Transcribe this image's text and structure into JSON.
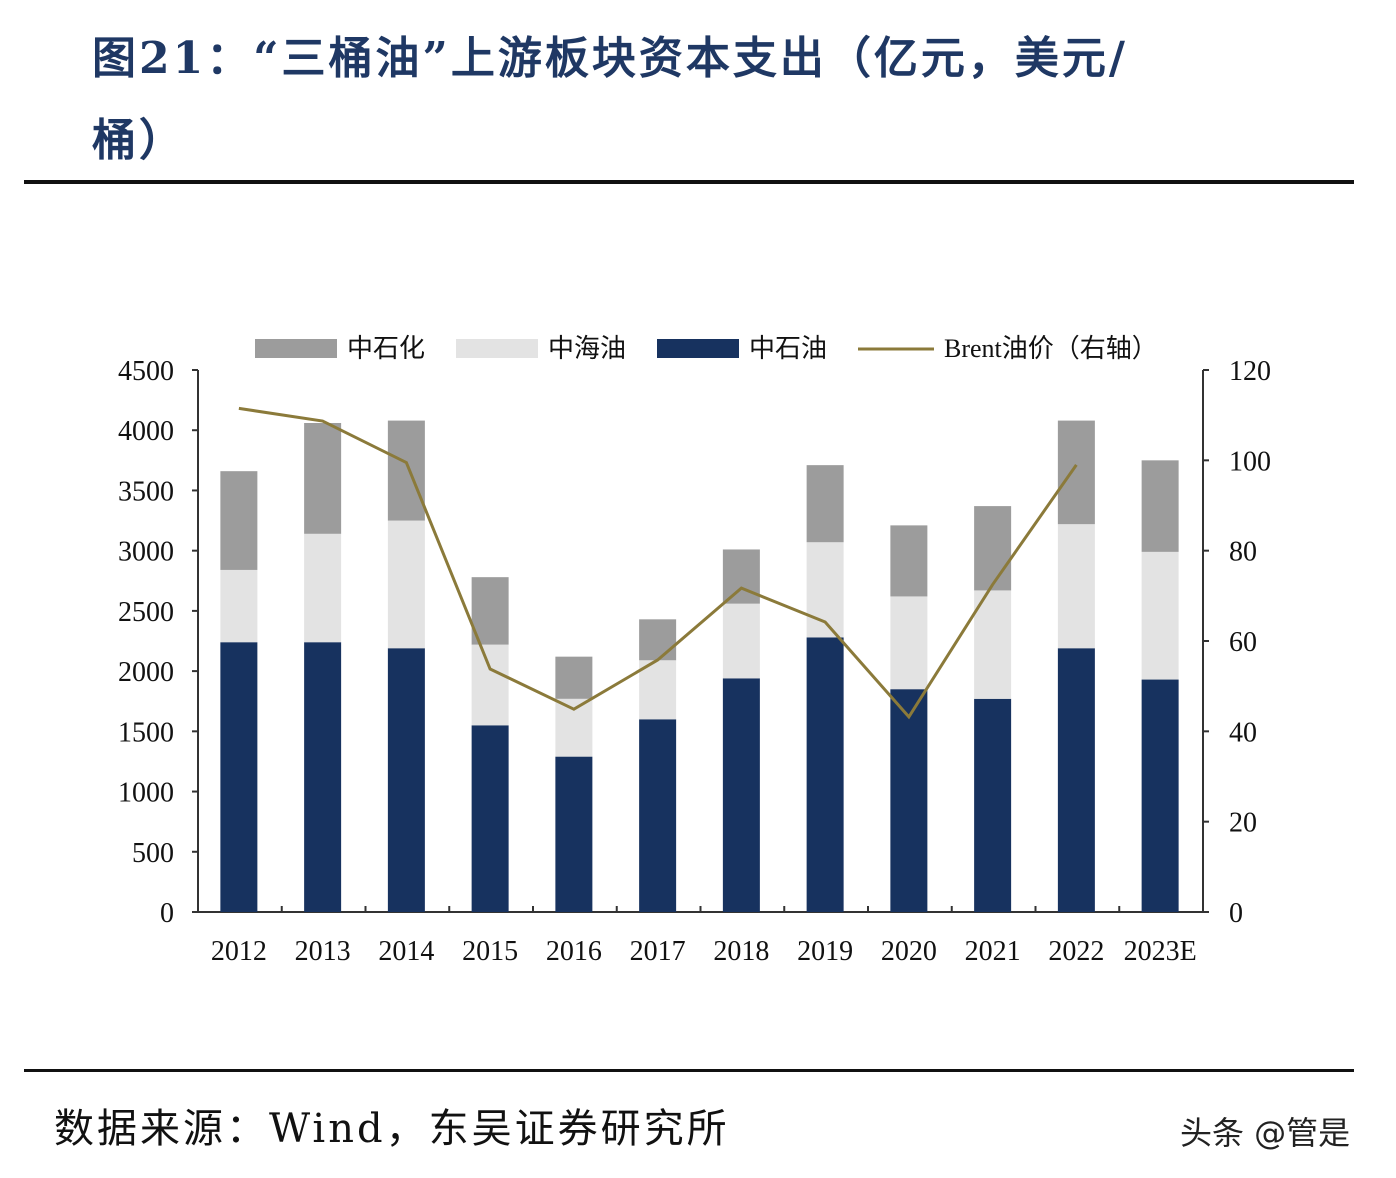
{
  "title_line1": "图21：“三桶油”上游板块资本支出（亿元，美元/",
  "title_line2": "桶）",
  "source": "数据来源：Wind，东吴证券研究所",
  "watermark": "头条 @管是",
  "chart_data": {
    "type": "bar",
    "stacked": true,
    "categories": [
      "2012",
      "2013",
      "2014",
      "2015",
      "2016",
      "2017",
      "2018",
      "2019",
      "2020",
      "2021",
      "2022",
      "2023E"
    ],
    "series": [
      {
        "name": "中石油",
        "color": "#17325f",
        "values": [
          2240,
          2240,
          2190,
          1550,
          1290,
          1600,
          1940,
          2280,
          1850,
          1770,
          2190,
          1930
        ]
      },
      {
        "name": "中海油",
        "color": "#e3e3e3",
        "values": [
          600,
          900,
          1060,
          670,
          480,
          490,
          620,
          790,
          770,
          900,
          1030,
          1060
        ]
      },
      {
        "name": "中石化",
        "color": "#9c9c9c",
        "values": [
          820,
          920,
          830,
          560,
          350,
          340,
          450,
          640,
          590,
          700,
          860,
          760
        ]
      }
    ],
    "line_series": {
      "name": "Brent油价（右轴）",
      "color": "#8b7a3a",
      "axis": "right",
      "values": [
        111.5,
        108.7,
        99.5,
        53.8,
        44.9,
        55.8,
        71.7,
        64.2,
        43.2,
        72.5,
        99.0,
        null
      ]
    },
    "legend": [
      "中石化",
      "中海油",
      "中石油",
      "Brent油价（右轴）"
    ],
    "legend_placement": "top",
    "ylim": [
      0,
      4500
    ],
    "yticks": [
      "0",
      "500",
      "1000",
      "1500",
      "2000",
      "2500",
      "3000",
      "3500",
      "4000",
      "4500"
    ],
    "y2lim": [
      0,
      120
    ],
    "y2ticks": [
      "0",
      "20",
      "40",
      "60",
      "80",
      "100",
      "120"
    ],
    "grid": false
  }
}
